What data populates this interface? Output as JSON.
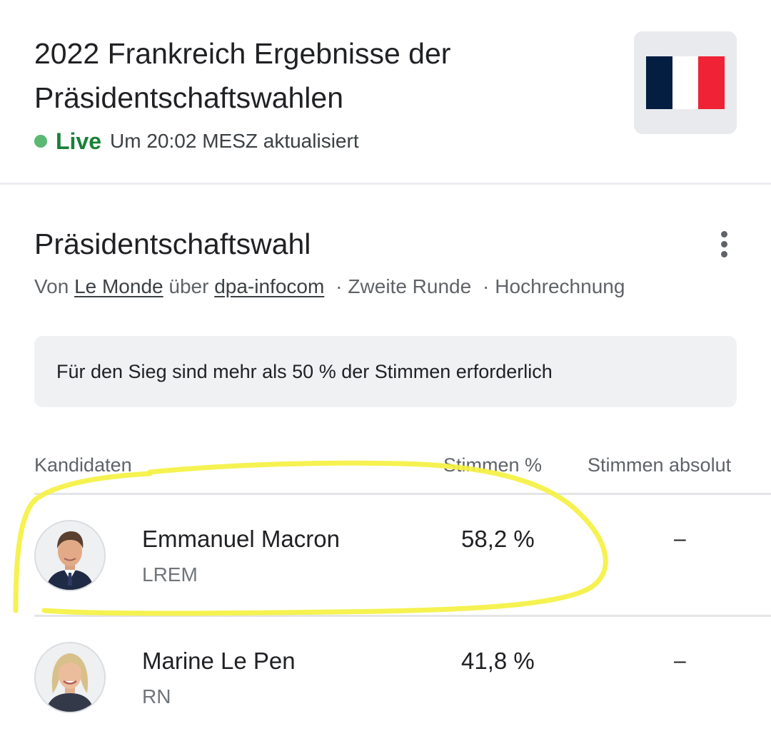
{
  "header": {
    "title": "2022 Frankreich Ergebnisse der Präsidentschaftswahlen",
    "live_label": "Live",
    "updated_text": "Um 20:02 MESZ aktualisiert",
    "flag_icon": "france-flag-icon",
    "flag_colors": [
      "#041e42",
      "#ffffff",
      "#ef2335"
    ]
  },
  "section": {
    "title": "Präsidentschaftswahl",
    "more_icon": "more-vertical-icon",
    "source_prefix": "Von",
    "source_name": "Le Monde",
    "source_via": "über",
    "source_agency": "dpa-infocom",
    "separator": "·",
    "round": "Zweite Runde",
    "status": "Hochrechnung"
  },
  "info_box": {
    "text": "Für den Sieg sind mehr als 50 % der Stimmen erforderlich"
  },
  "table": {
    "columns": {
      "candidates": "Kandidaten",
      "percent": "Stimmen %",
      "absolute": "Stimmen absolut"
    },
    "rows": [
      {
        "name": "Emmanuel Macron",
        "party": "LREM",
        "percent": "58,2 %",
        "absolute": "–"
      },
      {
        "name": "Marine Le Pen",
        "party": "RN",
        "percent": "41,8 %",
        "absolute": "–"
      }
    ]
  },
  "colors": {
    "live_green": "#188038",
    "live_dot": "#5bb974",
    "highlight_yellow": "#f4f142"
  }
}
